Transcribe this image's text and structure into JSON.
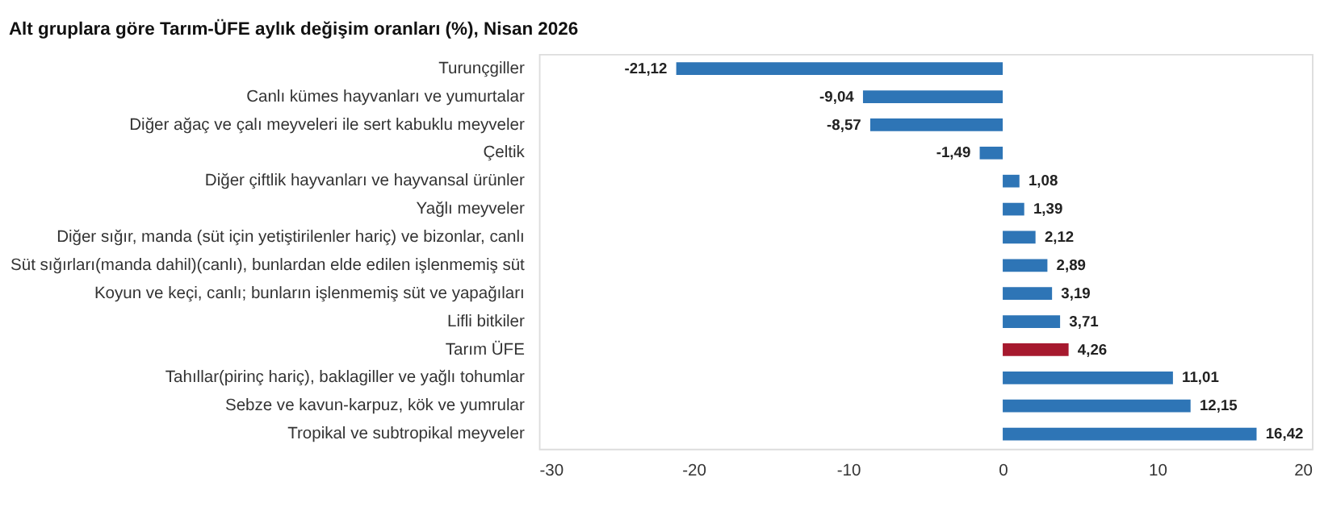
{
  "chart_data": {
    "type": "bar",
    "orientation": "horizontal",
    "title": "Alt gruplara göre Tarım-ÜFE aylık değişim oranları (%), Nisan 2026",
    "categories": [
      "Turunçgiller",
      "Canlı kümes hayvanları ve yumurtalar",
      "Diğer ağaç ve çalı meyveleri ile sert kabuklu meyveler",
      "Çeltik",
      "Diğer çiftlik hayvanları ve hayvansal ürünler",
      "Yağlı meyveler",
      "Diğer sığır, manda (süt için yetiştirilenler hariç) ve bizonlar, canlı",
      "Süt sığırları(manda dahil)(canlı), bunlardan elde edilen işlenmemiş süt",
      "Koyun ve keçi, canlı; bunların işlenmemiş süt ve yapağıları",
      "Lifli bitkiler",
      "Tarım ÜFE",
      "Tahıllar(pirinç hariç), baklagiller ve yağlı tohumlar",
      "Sebze ve kavun-karpuz, kök ve yumrular",
      "Tropikal ve subtropikal meyveler"
    ],
    "values": [
      -21.12,
      -9.04,
      -8.57,
      -1.49,
      1.08,
      1.39,
      2.12,
      2.89,
      3.19,
      3.71,
      4.26,
      11.01,
      12.15,
      16.42
    ],
    "value_labels": [
      "-21,12",
      "-9,04",
      "-8,57",
      "-1,49",
      "1,08",
      "1,39",
      "2,12",
      "2,89",
      "3,19",
      "3,71",
      "4,26",
      "11,01",
      "12,15",
      "16,42"
    ],
    "colors": [
      "#2e75b6",
      "#2e75b6",
      "#2e75b6",
      "#2e75b6",
      "#2e75b6",
      "#2e75b6",
      "#2e75b6",
      "#2e75b6",
      "#2e75b6",
      "#2e75b6",
      "#a6192e",
      "#2e75b6",
      "#2e75b6",
      "#2e75b6"
    ],
    "xlim": [
      -30,
      20
    ],
    "xticks": [
      -30,
      -20,
      -10,
      0,
      10,
      20
    ],
    "grid": false
  }
}
